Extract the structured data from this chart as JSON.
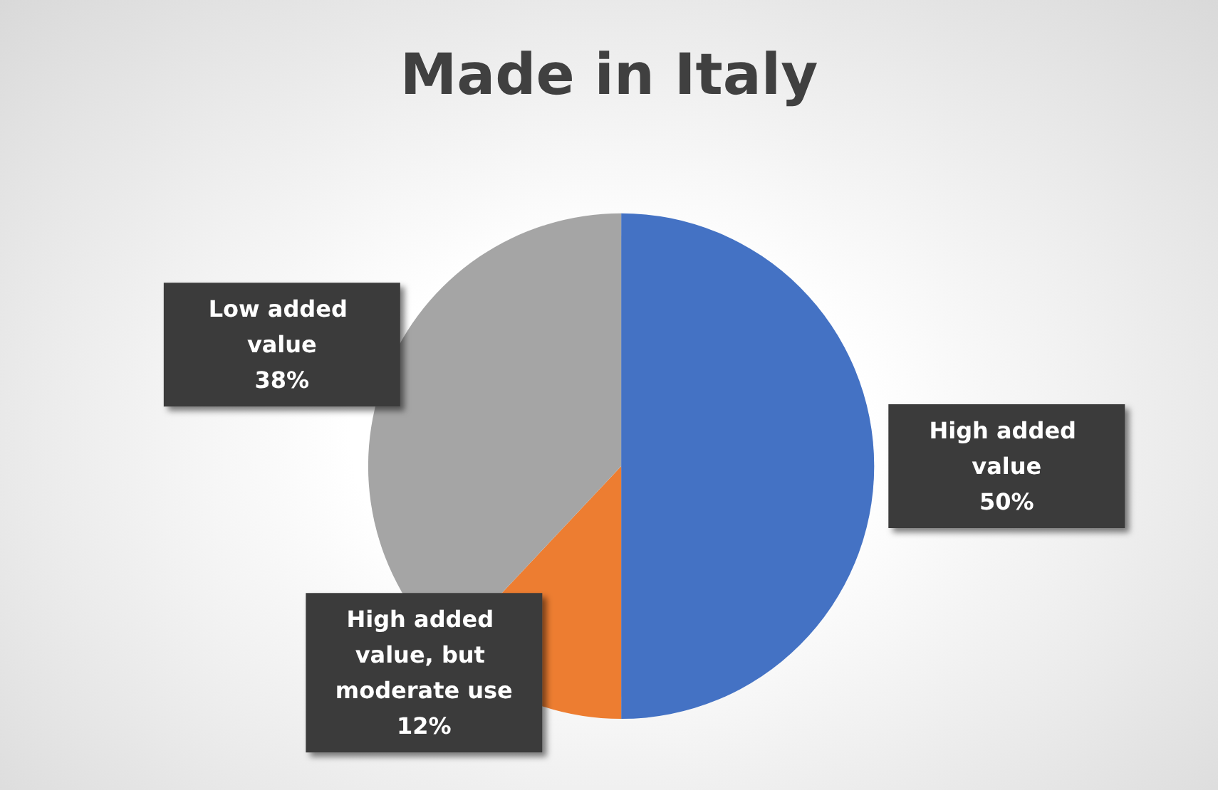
{
  "chart_data": {
    "type": "pie",
    "title": "Made in Italy",
    "categories": [
      "High added value",
      "High added value, but moderate use",
      "Low added value"
    ],
    "values": [
      50,
      12,
      38
    ],
    "colors": [
      "#4472c4",
      "#ed7d31",
      "#a5a5a5"
    ],
    "value_labels": [
      "50%",
      "12%",
      "38%"
    ],
    "legend": false
  }
}
